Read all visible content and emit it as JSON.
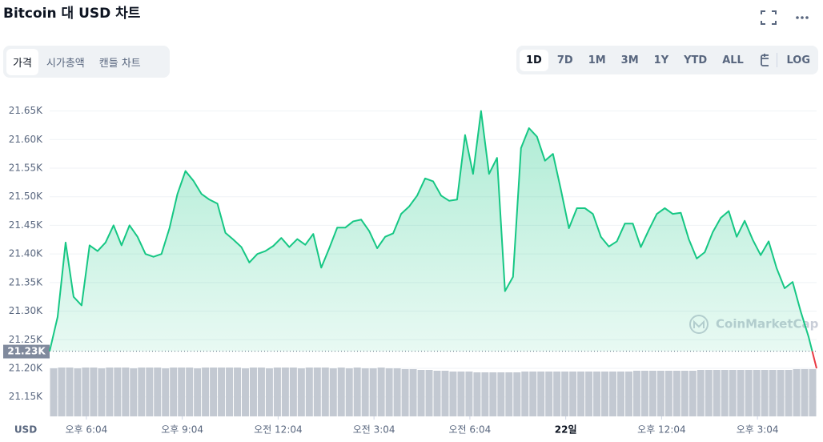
{
  "header": {
    "title": "Bitcoin 대 USD 차트"
  },
  "tabs": [
    {
      "label": "가격",
      "active": true
    },
    {
      "label": "시가총액",
      "active": false
    },
    {
      "label": "캔들 차트",
      "active": false
    }
  ],
  "ranges": [
    {
      "label": "1D",
      "active": true
    },
    {
      "label": "7D",
      "active": false
    },
    {
      "label": "1M",
      "active": false
    },
    {
      "label": "3M",
      "active": false
    },
    {
      "label": "1Y",
      "active": false
    },
    {
      "label": "YTD",
      "active": false
    },
    {
      "label": "ALL",
      "active": false
    }
  ],
  "scale_button": "LOG",
  "chart_data": {
    "type": "line",
    "x": [
      0,
      0.25,
      0.5,
      0.75,
      1,
      1.25,
      1.5,
      1.75,
      2,
      2.25,
      2.5,
      2.75,
      3,
      3.25,
      3.5,
      3.75,
      4,
      4.25,
      4.5,
      4.75,
      5,
      5.25,
      5.5,
      5.75,
      6,
      6.25,
      6.5,
      6.75,
      7,
      7.25,
      7.5,
      7.75,
      8,
      8.25,
      8.5,
      8.75,
      9,
      9.25,
      9.5,
      9.75,
      10,
      10.25,
      10.5,
      10.75,
      11,
      11.25,
      11.5,
      11.75,
      12,
      12.25,
      12.5,
      12.75,
      13,
      13.25,
      13.5,
      13.75,
      14,
      14.25,
      14.5,
      14.75,
      15,
      15.25,
      15.5,
      15.75,
      16,
      16.25,
      16.5,
      16.75,
      17,
      17.25,
      17.5,
      17.75,
      18,
      18.25,
      18.5,
      18.75,
      19,
      19.25,
      19.5,
      19.75,
      20,
      20.25,
      20.5,
      20.75,
      21,
      21.25,
      21.5,
      21.75,
      22,
      22.25,
      22.5,
      22.75,
      23,
      23.25,
      23.5,
      23.75,
      24
    ],
    "series": [
      {
        "color": "#16c784",
        "negative_color": "#ea3943",
        "values": [
          21230,
          21290,
          21420,
          21325,
          21310,
          21415,
          21405,
          21420,
          21450,
          21415,
          21450,
          21430,
          21400,
          21395,
          21400,
          21445,
          21505,
          21545,
          21528,
          21505,
          21495,
          21488,
          21437,
          21425,
          21412,
          21385,
          21400,
          21405,
          21414,
          21428,
          21412,
          21426,
          21416,
          21435,
          21376,
          21410,
          21446,
          21446,
          21457,
          21460,
          21440,
          21410,
          21430,
          21436,
          21470,
          21483,
          21502,
          21532,
          21527,
          21502,
          21493,
          21495,
          21608,
          21540,
          21650,
          21540,
          21568,
          21335,
          21360,
          21585,
          21620,
          21605,
          21563,
          21575,
          21512,
          21445,
          21480,
          21480,
          21470,
          21430,
          21413,
          21422,
          21453,
          21453,
          21412,
          21442,
          21470,
          21480,
          21470,
          21472,
          21426,
          21392,
          21403,
          21438,
          21463,
          21475,
          21430,
          21458,
          21425,
          21398,
          21422,
          21375,
          21340,
          21351,
          21300,
          21255,
          21200
        ]
      }
    ],
    "reference": {
      "value": 21230,
      "label": "21.23K"
    },
    "xlim": [
      0,
      24
    ],
    "xticks": [
      {
        "value": 1.15,
        "label": "오후 6:04"
      },
      {
        "value": 4.15,
        "label": "오후 9:04"
      },
      {
        "value": 7.15,
        "label": "오전 12:04"
      },
      {
        "value": 10.15,
        "label": "오전 3:04"
      },
      {
        "value": 13.15,
        "label": "오전 6:04"
      },
      {
        "value": 16.15,
        "label": "22일",
        "bold": true
      },
      {
        "value": 19.15,
        "label": "오후 12:04"
      },
      {
        "value": 22.15,
        "label": "오후 3:04"
      }
    ],
    "ylim": [
      21116,
      21690
    ],
    "yticks": [
      {
        "value": 21650,
        "label": "21.65K"
      },
      {
        "value": 21600,
        "label": "21.60K"
      },
      {
        "value": 21550,
        "label": "21.55K"
      },
      {
        "value": 21500,
        "label": "21.50K"
      },
      {
        "value": 21450,
        "label": "21.45K"
      },
      {
        "value": 21400,
        "label": "21.40K"
      },
      {
        "value": 21350,
        "label": "21.35K"
      },
      {
        "value": 21300,
        "label": "21.30K"
      },
      {
        "value": 21250,
        "label": "21.25K"
      },
      {
        "value": 21200,
        "label": "21.20K"
      },
      {
        "value": 21150,
        "label": "21.15K"
      }
    ],
    "y_unit": "USD",
    "grid": true,
    "volume": {
      "color": "#c3c9d2",
      "values": [
        60,
        61,
        61,
        60,
        61,
        61,
        60,
        61,
        61,
        61,
        60,
        61,
        61,
        61,
        60,
        61,
        61,
        61,
        60,
        61,
        61,
        61,
        61,
        61,
        60,
        61,
        61,
        60,
        61,
        61,
        61,
        60,
        61,
        61,
        61,
        60,
        61,
        60,
        61,
        60,
        60,
        61,
        60,
        60,
        59,
        59,
        58,
        58,
        57,
        57,
        56,
        56,
        56,
        55,
        55,
        55,
        55,
        55,
        55,
        56,
        56,
        56,
        56,
        56,
        56,
        56,
        56,
        56,
        56,
        56,
        56,
        56,
        56,
        57,
        57,
        57,
        57,
        57,
        57,
        57,
        57,
        58,
        58,
        58,
        58,
        58,
        58,
        58,
        58,
        58,
        58,
        58,
        58,
        59,
        59,
        59
      ]
    },
    "watermark": "CoinMarketCap"
  }
}
